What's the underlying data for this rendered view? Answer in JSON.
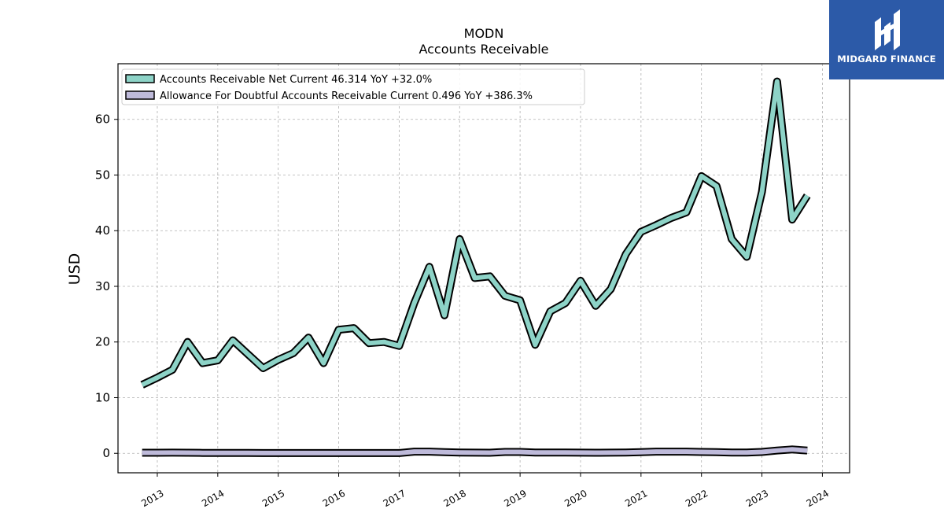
{
  "chart_data": {
    "type": "line",
    "title": "MODN",
    "subtitle": "Accounts Receivable",
    "xlabel": "",
    "ylabel": "USD",
    "xlim": [
      2012.35,
      2024.45
    ],
    "ylim": [
      -3.5,
      70
    ],
    "y_ticks": [
      0,
      10,
      20,
      30,
      40,
      50,
      60
    ],
    "x_ticks": [
      2013,
      2014,
      2015,
      2016,
      2017,
      2018,
      2019,
      2020,
      2021,
      2022,
      2023,
      2024
    ],
    "x_tick_labels": [
      "2013",
      "2014",
      "2015",
      "2016",
      "2017",
      "2018",
      "2019",
      "2020",
      "2021",
      "2022",
      "2023",
      "2024"
    ],
    "grid": true,
    "legend_position": "top-left",
    "series": [
      {
        "name": "Accounts Receivable Net Current",
        "legend_label": "Accounts Receivable Net Current  46.314 YoY +32.0%",
        "color": "#8dd3c7",
        "x": [
          2012.75,
          2013.0,
          2013.25,
          2013.5,
          2013.75,
          2014.0,
          2014.25,
          2014.5,
          2014.75,
          2015.0,
          2015.25,
          2015.5,
          2015.75,
          2016.0,
          2016.25,
          2016.5,
          2016.75,
          2017.0,
          2017.25,
          2017.5,
          2017.75,
          2018.0,
          2018.25,
          2018.5,
          2018.75,
          2019.0,
          2019.25,
          2019.5,
          2019.75,
          2020.0,
          2020.25,
          2020.5,
          2020.75,
          2021.0,
          2021.25,
          2021.5,
          2021.75,
          2022.0,
          2022.25,
          2022.5,
          2022.75,
          2023.0,
          2023.25,
          2023.5,
          2023.75
        ],
        "values": [
          12.3,
          13.6,
          15.0,
          20.0,
          16.2,
          16.7,
          20.3,
          17.8,
          15.3,
          16.8,
          18.0,
          20.8,
          16.2,
          22.2,
          22.5,
          19.8,
          20.0,
          19.3,
          27.0,
          33.5,
          24.8,
          38.5,
          31.5,
          31.8,
          28.3,
          27.5,
          19.5,
          25.5,
          27.0,
          31.0,
          26.5,
          29.5,
          35.8,
          39.8,
          41.0,
          42.3,
          43.3,
          49.8,
          48.0,
          38.5,
          35.3,
          47.0,
          66.8,
          42.0,
          46.3
        ]
      },
      {
        "name": "Allowance For Doubtful Accounts Receivable Current",
        "legend_label": "Allowance For Doubtful Accounts Receivable Current  0.496 YoY +386.3%",
        "color": "#bebada",
        "x": [
          2012.75,
          2013.0,
          2013.25,
          2013.5,
          2013.75,
          2014.0,
          2014.25,
          2014.5,
          2014.75,
          2015.0,
          2015.25,
          2015.5,
          2015.75,
          2016.0,
          2016.25,
          2016.5,
          2016.75,
          2017.0,
          2017.25,
          2017.5,
          2017.75,
          2018.0,
          2018.25,
          2018.5,
          2018.75,
          2019.0,
          2019.25,
          2019.5,
          2019.75,
          2020.0,
          2020.25,
          2020.5,
          2020.75,
          2021.0,
          2021.25,
          2021.5,
          2021.75,
          2022.0,
          2022.25,
          2022.5,
          2022.75,
          2023.0,
          2023.25,
          2023.5,
          2023.75
        ],
        "values": [
          0.1,
          0.1,
          0.12,
          0.1,
          0.08,
          0.07,
          0.06,
          0.06,
          0.05,
          0.05,
          0.05,
          0.05,
          0.05,
          0.05,
          0.05,
          0.05,
          0.05,
          0.05,
          0.3,
          0.3,
          0.2,
          0.15,
          0.12,
          0.1,
          0.25,
          0.25,
          0.15,
          0.15,
          0.15,
          0.12,
          0.1,
          0.12,
          0.15,
          0.2,
          0.3,
          0.3,
          0.3,
          0.25,
          0.2,
          0.15,
          0.15,
          0.25,
          0.5,
          0.7,
          0.5
        ]
      }
    ]
  },
  "logo": {
    "text": "MIDGARD FINANCE",
    "background": "#2c5aa8"
  }
}
